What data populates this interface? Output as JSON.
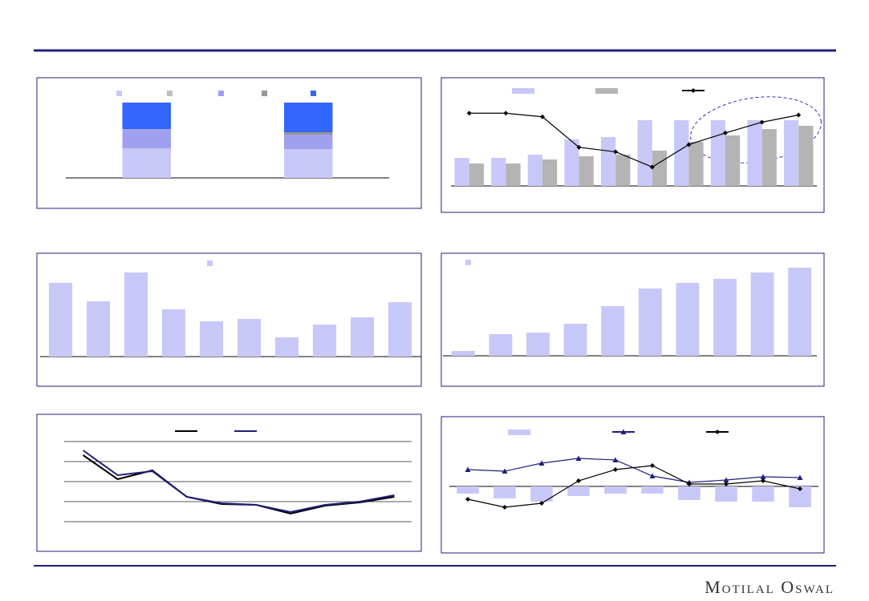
{
  "footer": {
    "brand": "Motilal Oswal"
  },
  "chart_data": [
    {
      "type": "bar",
      "stacked": true,
      "categories": [
        null,
        null
      ],
      "ylim": [
        0,
        100
      ],
      "series": [
        {
          "color": "#c8c8f8",
          "values": [
            37,
            36
          ]
        },
        {
          "color": "#c0c0c0",
          "values": [
            0,
            0
          ]
        },
        {
          "color": "#a0a0f0",
          "values": [
            24,
            18
          ]
        },
        {
          "color": "#969696",
          "values": [
            0,
            3
          ]
        },
        {
          "color": "#3366ff",
          "values": [
            33,
            37
          ]
        }
      ]
    },
    {
      "type": "bar",
      "categories": [
        null,
        null,
        null,
        null,
        null,
        null,
        null,
        null,
        null,
        null
      ],
      "ylim": [
        0,
        112
      ],
      "y2lim": [
        0,
        100
      ],
      "series": [
        {
          "color": "#c8c8f8",
          "values": [
            35,
            35,
            39,
            58,
            61,
            82,
            82,
            82,
            82,
            82
          ]
        },
        {
          "color": "#b4b4b4",
          "values": [
            28,
            28,
            33,
            37,
            39,
            44,
            55,
            63,
            71,
            75
          ]
        },
        {
          "color": "#000000",
          "type": "line",
          "marker": "diamond",
          "axis": "y2",
          "values": [
            81,
            81,
            77,
            43,
            38,
            21,
            46,
            59,
            71,
            79
          ]
        }
      ]
    },
    {
      "type": "bar",
      "categories": [
        null,
        null,
        null,
        null,
        null,
        null,
        null,
        null,
        null,
        null
      ],
      "ylim": [
        0,
        115
      ],
      "series": [
        {
          "color": "#c8c8f8",
          "values": [
            92,
            69,
            105,
            59,
            44,
            47,
            24,
            40,
            49,
            68
          ]
        }
      ]
    },
    {
      "type": "bar",
      "categories": [
        null,
        null,
        null,
        null,
        null,
        null,
        null,
        null,
        null,
        null
      ],
      "ylim": [
        0,
        115
      ],
      "series": [
        {
          "color": "#c8c8f8",
          "values": [
            6,
            27,
            29,
            40,
            62,
            84,
            91,
            96,
            104,
            110
          ]
        }
      ]
    },
    {
      "type": "line",
      "grid": true,
      "categories": [
        null,
        null,
        null,
        null,
        null,
        null,
        null,
        null,
        null,
        null
      ],
      "ylim": [
        0,
        100
      ],
      "yticks": [
        0,
        25,
        50,
        75,
        100
      ],
      "series": [
        {
          "color": "#000000",
          "type": "line",
          "marker": "none",
          "values": [
            83,
            53,
            64,
            31,
            22,
            21,
            10,
            20,
            24,
            31
          ]
        },
        {
          "color": "#1f1f7a",
          "type": "line",
          "marker": "none",
          "values": [
            89,
            58,
            63,
            31,
            23,
            21,
            12,
            21,
            25,
            33
          ]
        }
      ]
    },
    {
      "type": "bar",
      "categories": [
        null,
        null,
        null,
        null,
        null,
        null,
        null,
        null,
        null,
        null
      ],
      "ylim": [
        -35,
        55
      ],
      "series": [
        {
          "color": "#c8c8f8",
          "values": [
            -9,
            -15,
            -19,
            -12,
            -9,
            -9,
            -17,
            -19,
            -19,
            -26
          ]
        },
        {
          "color": "#1f1f7a",
          "type": "line",
          "marker": "triangle",
          "values": [
            21,
            19,
            29,
            35,
            33,
            13,
            5,
            8,
            12,
            11
          ]
        },
        {
          "color": "#000000",
          "type": "line",
          "marker": "diamond",
          "values": [
            -16,
            -26,
            -21,
            7,
            21,
            26,
            3,
            3,
            7,
            -3
          ]
        }
      ]
    }
  ]
}
